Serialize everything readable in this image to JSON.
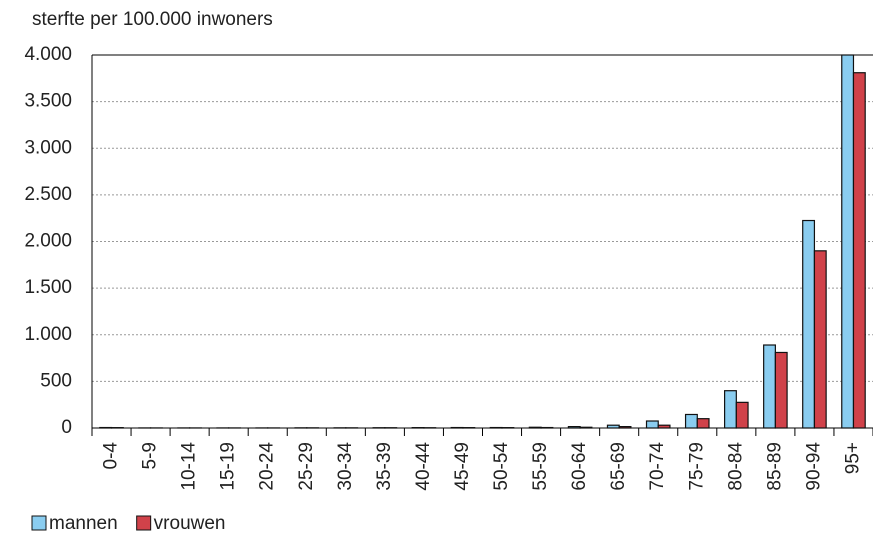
{
  "chart_data": {
    "type": "bar",
    "y_label": "sterfte per 100.000 inwoners",
    "categories": [
      "0-4",
      "5-9",
      "10-14",
      "15-19",
      "20-24",
      "25-29",
      "30-34",
      "35-39",
      "40-44",
      "45-49",
      "50-54",
      "55-59",
      "60-64",
      "65-69",
      "70-74",
      "75-79",
      "80-84",
      "85-89",
      "90-94",
      "95+"
    ],
    "series": [
      {
        "name": "mannen",
        "color": "#8acdf0",
        "values": [
          5,
          1,
          1,
          1,
          1,
          2,
          2,
          3,
          4,
          5,
          5,
          8,
          15,
          30,
          75,
          145,
          400,
          890,
          2225,
          4000
        ]
      },
      {
        "name": "vrouwen",
        "color": "#d0424a",
        "values": [
          4,
          1,
          1,
          1,
          1,
          2,
          2,
          3,
          3,
          4,
          4,
          5,
          8,
          15,
          30,
          100,
          275,
          810,
          1900,
          3810
        ]
      }
    ],
    "ylim": [
      0,
      4000
    ],
    "yticks": [
      0,
      500,
      {
        "value": 1000,
        "label": "1.000"
      },
      {
        "value": 1500,
        "label": "1.500"
      },
      {
        "value": 2000,
        "label": "2.000"
      },
      {
        "value": 2500,
        "label": "2.500"
      },
      {
        "value": 3000,
        "label": "3.000"
      },
      {
        "value": 3500,
        "label": "3.500"
      },
      {
        "value": 4000,
        "label": "4.000"
      }
    ],
    "grid": true
  }
}
